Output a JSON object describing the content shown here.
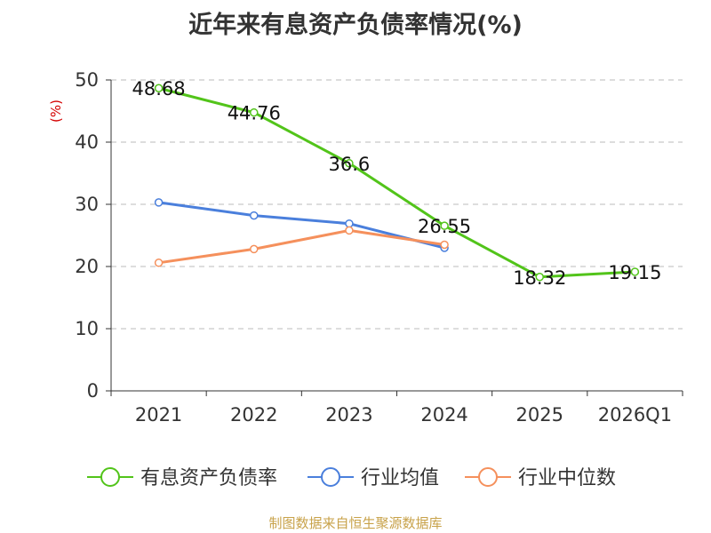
{
  "title": "近年来有息资产负债率情况(%)",
  "source": "制图数据来自恒生聚源数据库",
  "chart_data": {
    "type": "line",
    "title": "近年来有息资产负债率情况(%)",
    "ylabel": "(%)",
    "xlabel": "",
    "categories": [
      "2021",
      "2022",
      "2023",
      "2024",
      "2025",
      "2026Q1"
    ],
    "ylim": [
      0,
      50
    ],
    "yticks": [
      0,
      10,
      20,
      30,
      40,
      50
    ],
    "grid": true,
    "legend_position": "bottom",
    "series": [
      {
        "name": "有息资产负债率",
        "color": "#52c41a",
        "values": [
          48.68,
          44.76,
          36.6,
          26.55,
          18.32,
          19.15
        ],
        "labels": [
          "48.68",
          "44.76",
          "36.6",
          "26.55",
          "18.32",
          "19.15"
        ]
      },
      {
        "name": "行业均值",
        "color": "#4a7fdc",
        "values": [
          30.3,
          28.2,
          26.9,
          23.0,
          null,
          null
        ]
      },
      {
        "name": "行业中位数",
        "color": "#f5905c",
        "values": [
          20.6,
          22.8,
          25.8,
          23.5,
          null,
          null
        ]
      }
    ]
  }
}
